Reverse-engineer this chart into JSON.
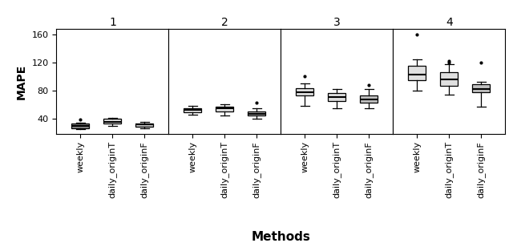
{
  "ylabel": "MAPE",
  "xlabel": "Methods",
  "ylim": [
    18,
    168
  ],
  "yticks": [
    40,
    80,
    120,
    160
  ],
  "panel_titles": [
    "1",
    "2",
    "3",
    "4"
  ],
  "categories": [
    "weekly",
    "daily_originT",
    "daily_originF"
  ],
  "panels": [
    {
      "weekly": {
        "q1": 26,
        "median": 29,
        "q3": 32,
        "whislo": 24,
        "whishi": 34,
        "fliers": [
          38
        ]
      },
      "daily_originT": {
        "q1": 32,
        "median": 35,
        "q3": 39,
        "whislo": 29,
        "whishi": 41,
        "fliers": []
      },
      "daily_originF": {
        "q1": 28,
        "median": 31,
        "q3": 33,
        "whislo": 26,
        "whishi": 35,
        "fliers": []
      }
    },
    {
      "weekly": {
        "q1": 49,
        "median": 52,
        "q3": 55,
        "whislo": 45,
        "whishi": 58,
        "fliers": []
      },
      "daily_originT": {
        "q1": 50,
        "median": 54,
        "q3": 57,
        "whislo": 44,
        "whishi": 60,
        "fliers": []
      },
      "daily_originF": {
        "q1": 44,
        "median": 46,
        "q3": 50,
        "whislo": 39,
        "whishi": 54,
        "fliers": [
          63
        ]
      }
    },
    {
      "weekly": {
        "q1": 73,
        "median": 78,
        "q3": 83,
        "whislo": 58,
        "whishi": 90,
        "fliers": [
          100
        ]
      },
      "daily_originT": {
        "q1": 65,
        "median": 70,
        "q3": 76,
        "whislo": 55,
        "whishi": 82,
        "fliers": []
      },
      "daily_originF": {
        "q1": 62,
        "median": 67,
        "q3": 73,
        "whislo": 54,
        "whishi": 82,
        "fliers": [
          88
        ]
      }
    },
    {
      "weekly": {
        "q1": 95,
        "median": 103,
        "q3": 115,
        "whislo": 80,
        "whishi": 125,
        "fliers": [
          160
        ]
      },
      "daily_originT": {
        "q1": 87,
        "median": 96,
        "q3": 106,
        "whislo": 74,
        "whishi": 118,
        "fliers": [
          120,
          122
        ]
      },
      "daily_originF": {
        "q1": 77,
        "median": 82,
        "q3": 89,
        "whislo": 57,
        "whishi": 93,
        "fliers": [
          120
        ]
      }
    }
  ],
  "box_colors": [
    [
      "#888888",
      "#e0e0e0",
      "#c0c0c0"
    ],
    [
      "#e0e0e0",
      "#e0e0e0",
      "#c0c0c0"
    ],
    [
      "#e0e0e0",
      "#e0e0e0",
      "#c0c0c0"
    ],
    [
      "#e0e0e0",
      "#e0e0e0",
      "#c0c0c0"
    ]
  ],
  "label_fontsize": 8,
  "title_fontsize": 10,
  "ylabel_fontsize": 10,
  "xlabel_fontsize": 11
}
